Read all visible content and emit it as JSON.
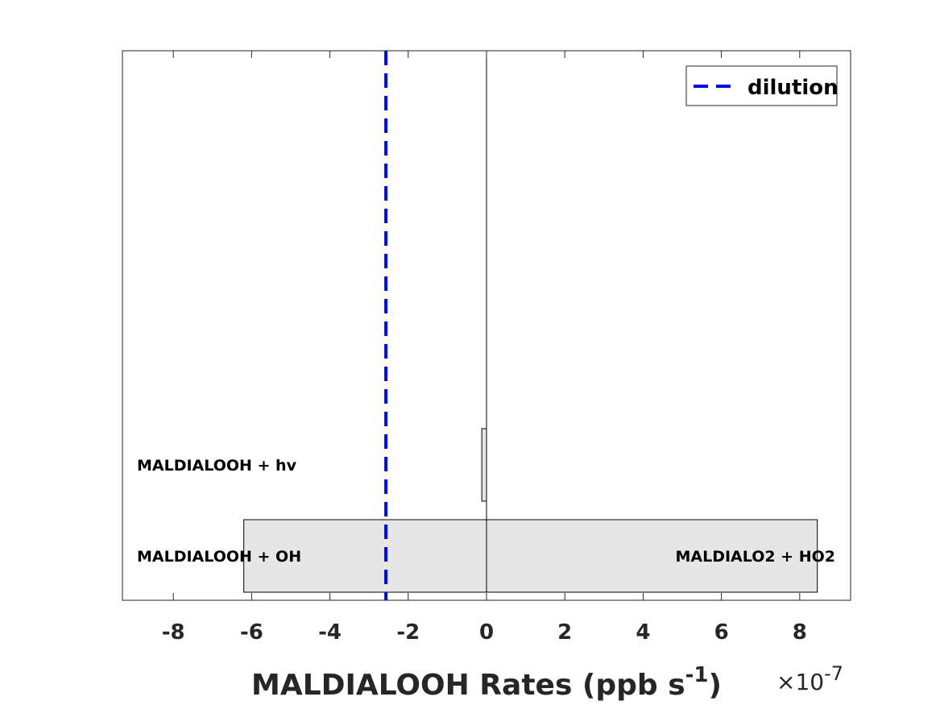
{
  "chart_data": {
    "type": "bar",
    "orientation": "horizontal",
    "stacked": true,
    "xlabel_prefix": "MALDIALOOH Rates (ppb s",
    "xlabel_exponent": "-1",
    "xlabel_suffix": ")",
    "exponent_prefix": "×10",
    "exponent_power": "-7",
    "xlim": [
      -9.3,
      9.3
    ],
    "xticks": [
      -8,
      -6,
      -4,
      -2,
      0,
      2,
      4,
      6,
      8
    ],
    "xtick_labels": [
      "-8",
      "-6",
      "-4",
      "-2",
      "0",
      "2",
      "4",
      "6",
      "8"
    ],
    "grid": false,
    "bar_color": "#e6e6e6",
    "bar_edge_color": "#000000",
    "rows": [
      {
        "negative_label": "MALDIALOOH + OH",
        "positive_label": "MALDIALO2 + HO2",
        "negative": -6.2,
        "positive": 8.45
      },
      {
        "negative_label": "MALDIALOOH + hv",
        "positive_label": "",
        "negative": -0.12,
        "positive": 0
      }
    ],
    "reference_line": {
      "name": "dilution",
      "x": -2.57,
      "color": "#0000ff",
      "style": "dashed"
    },
    "legend": {
      "placement": "top-right",
      "entries": [
        "dilution"
      ]
    }
  }
}
